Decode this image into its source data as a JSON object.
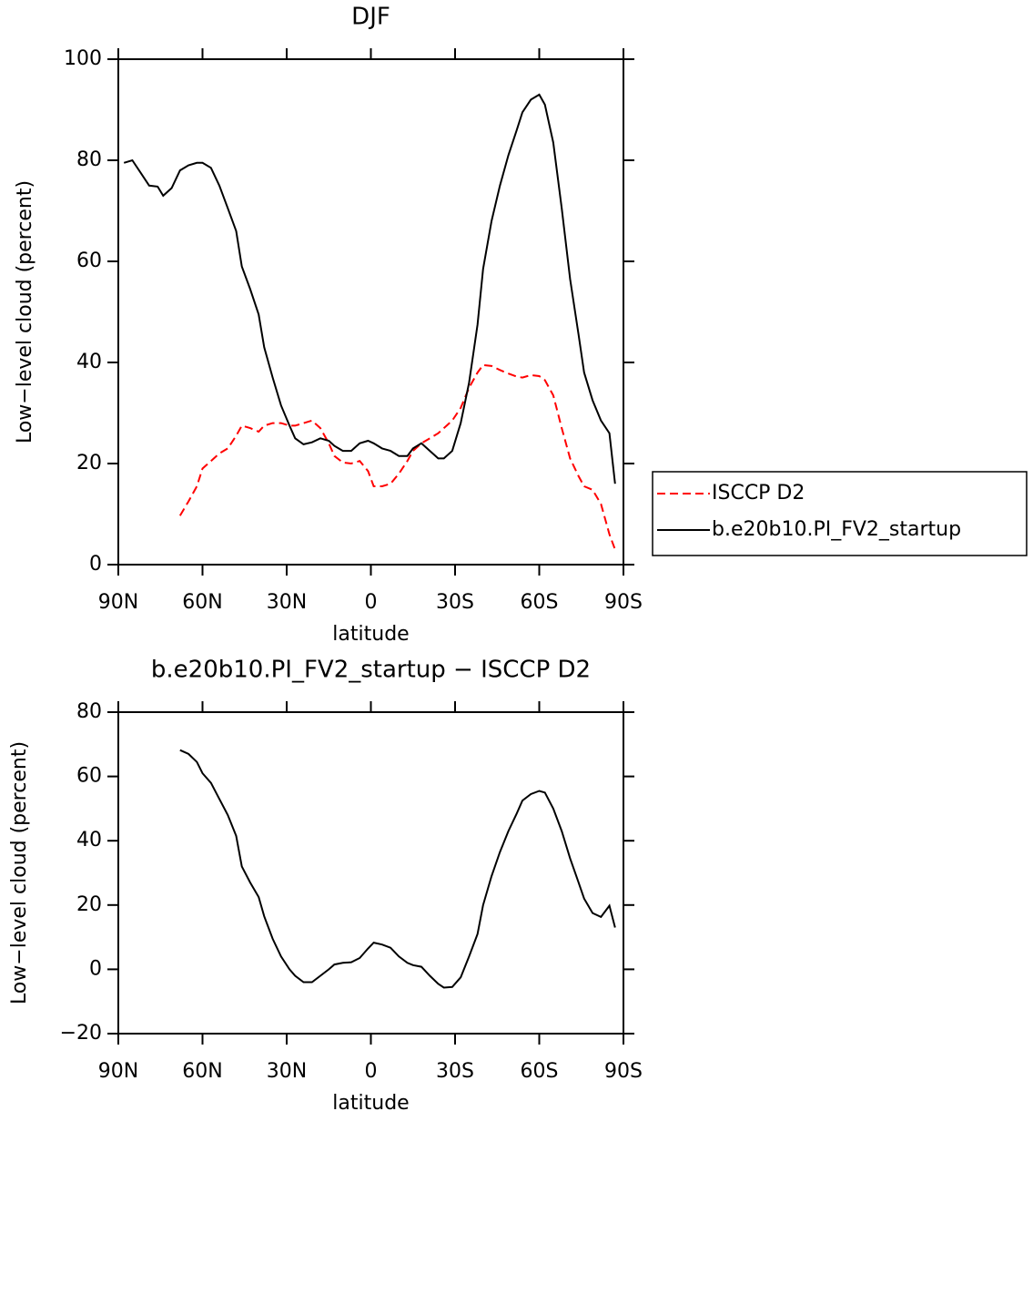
{
  "chart_data": [
    {
      "type": "line",
      "title": "DJF",
      "x_label": "latitude",
      "y_label": "Low−level cloud (percent)",
      "xlim": [
        90,
        -90
      ],
      "ylim": [
        0,
        100
      ],
      "xticks": [
        {
          "value": 90,
          "label": "90N"
        },
        {
          "value": 60,
          "label": "60N"
        },
        {
          "value": 30,
          "label": "30N"
        },
        0,
        {
          "value": -30,
          "label": "30S"
        },
        {
          "value": -60,
          "label": "60S"
        },
        {
          "value": -90,
          "label": "90S"
        }
      ],
      "yticks": [
        0,
        20,
        40,
        60,
        80,
        100
      ],
      "legend": "right",
      "x": [
        88,
        85,
        82,
        79,
        76,
        74,
        71,
        68,
        65,
        62,
        60,
        57,
        54,
        51,
        48,
        46,
        43,
        40,
        38,
        35,
        32,
        29,
        27,
        24,
        21,
        18,
        15,
        13,
        10,
        7,
        4,
        1,
        -1,
        -4,
        -7,
        -10,
        -13,
        -15,
        -18,
        -21,
        -24,
        -26,
        -29,
        -32,
        -35,
        -38,
        -40,
        -43,
        -46,
        -49,
        -52,
        -54,
        -57,
        -60,
        -62,
        -65,
        -68,
        -71,
        -74,
        -76,
        -79,
        -82,
        -85,
        -87
      ],
      "series": [
        {
          "name": "ISCCP D2",
          "color": "#ff0000",
          "style": "dashed",
          "values": [
            null,
            null,
            null,
            null,
            null,
            null,
            null,
            9.7,
            12.5,
            15.5,
            19,
            20.5,
            22,
            23,
            25.5,
            27.5,
            27,
            26.3,
            27.5,
            28,
            28,
            27.5,
            27.5,
            28,
            28.5,
            27,
            24,
            21.5,
            20.2,
            20,
            20.5,
            18.5,
            15.5,
            15.5,
            16,
            18,
            20.5,
            22.5,
            24,
            25,
            26,
            27,
            28.5,
            31,
            35,
            38,
            39.5,
            39.3,
            38.5,
            37.8,
            37.2,
            37,
            37.5,
            37.3,
            36.5,
            33.5,
            27,
            21,
            17.5,
            15.5,
            14.8,
            12,
            6,
            3
          ]
        },
        {
          "name": "b.e20b10.PI_FV2_startup",
          "color": "#000000",
          "style": "solid",
          "values": [
            79.5,
            80,
            77.5,
            75,
            74.8,
            73,
            74.5,
            78,
            79,
            79.5,
            79.5,
            78.5,
            75,
            70.5,
            66,
            59,
            54.5,
            49.5,
            43,
            37,
            31.5,
            27.5,
            25,
            23.8,
            24.2,
            25,
            24.5,
            23.5,
            22.5,
            22.5,
            24,
            24.5,
            24,
            23,
            22.5,
            21.5,
            21.5,
            23,
            24,
            22.5,
            21,
            21,
            22.5,
            28,
            36,
            47.5,
            58.5,
            68,
            75,
            81,
            86,
            89.5,
            92,
            93,
            91,
            83.5,
            70.5,
            56.5,
            45.5,
            38,
            32.5,
            28.5,
            26,
            16
          ]
        }
      ]
    },
    {
      "type": "line",
      "title": "b.e20b10.PI_FV2_startup − ISCCP D2",
      "x_label": "latitude",
      "y_label": "Low−level cloud (percent)",
      "xlim": [
        90,
        -90
      ],
      "ylim": [
        -20,
        80
      ],
      "xticks": [
        {
          "value": 90,
          "label": "90N"
        },
        {
          "value": 60,
          "label": "60N"
        },
        {
          "value": 30,
          "label": "30N"
        },
        0,
        {
          "value": -30,
          "label": "30S"
        },
        {
          "value": -60,
          "label": "60S"
        },
        {
          "value": -90,
          "label": "90S"
        }
      ],
      "yticks": [
        {
          "value": -20,
          "label": "−20"
        },
        0,
        20,
        40,
        60,
        80
      ],
      "x": [
        88,
        85,
        82,
        79,
        76,
        74,
        71,
        68,
        65,
        62,
        60,
        57,
        54,
        51,
        48,
        46,
        43,
        40,
        38,
        35,
        32,
        29,
        27,
        24,
        21,
        18,
        15,
        13,
        10,
        7,
        4,
        1,
        -1,
        -4,
        -7,
        -10,
        -13,
        -15,
        -18,
        -21,
        -24,
        -26,
        -29,
        -32,
        -35,
        -38,
        -40,
        -43,
        -46,
        -49,
        -52,
        -54,
        -57,
        -60,
        -62,
        -65,
        -68,
        -71,
        -74,
        -76,
        -79,
        -82,
        -85,
        -87
      ],
      "series": [
        {
          "color": "#000000",
          "style": "solid",
          "values": [
            null,
            null,
            null,
            null,
            null,
            null,
            null,
            68.2,
            67,
            64.5,
            61,
            58,
            53,
            48,
            41.5,
            32,
            27,
            22.5,
            16.5,
            9.5,
            4,
            0,
            -2,
            -4,
            -4,
            -2,
            0,
            1.5,
            2,
            2.2,
            3.5,
            6.5,
            8.3,
            7.7,
            6.7,
            4,
            2,
            1.3,
            0.8,
            -2,
            -4.5,
            -5.7,
            -5.5,
            -2.5,
            4,
            11,
            20,
            29,
            36.5,
            43,
            48.5,
            52.5,
            54.5,
            55.5,
            55,
            50,
            43,
            34.5,
            27,
            22,
            17.5,
            16.3,
            19.8,
            13
          ]
        }
      ]
    }
  ]
}
